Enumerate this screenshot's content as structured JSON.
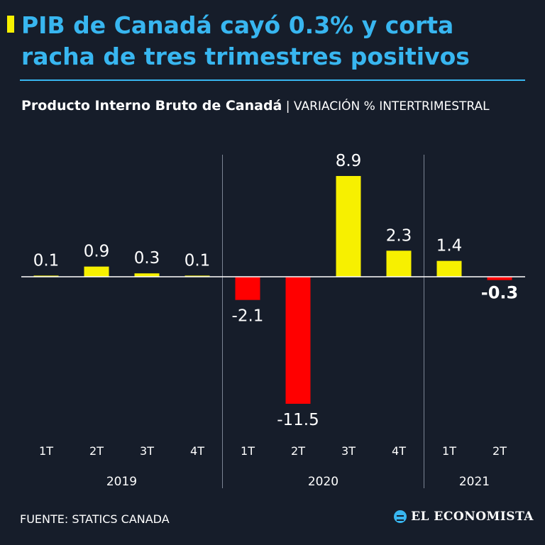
{
  "header": {
    "title": "PIB de Canadá cayó 0.3% y corta racha de tres trimestres positivos",
    "subtitle_strong": "Producto Interno Bruto de Canadá",
    "subtitle_light": "| VARIACIÓN % INTERTRIMESTRAL"
  },
  "footer": {
    "source": "FUENTE: STATICS CANADA",
    "logo": "EL ECONOMISTA"
  },
  "colors": {
    "positive": "#f7f000",
    "negative": "#ff0000",
    "title": "#38b6f0",
    "background": "#161d2a"
  },
  "chart_data": {
    "type": "bar",
    "title": "Producto Interno Bruto de Canadá",
    "ylabel": "Variación % intertrimestral",
    "ylim": [
      -11.5,
      8.9
    ],
    "categories": [
      "1T",
      "2T",
      "3T",
      "4T",
      "1T",
      "2T",
      "3T",
      "4T",
      "1T",
      "2T"
    ],
    "groups": [
      {
        "label": "2019",
        "count": 4
      },
      {
        "label": "2020",
        "count": 4
      },
      {
        "label": "2021",
        "count": 2
      }
    ],
    "values": [
      0.1,
      0.9,
      0.3,
      0.1,
      -2.1,
      -11.5,
      8.9,
      2.3,
      1.4,
      -0.3
    ],
    "value_labels": [
      "0.1",
      "0.9",
      "0.3",
      "0.1",
      "-2.1",
      "-11.5",
      "8.9",
      "2.3",
      "1.4",
      "-0.3"
    ],
    "highlight_index": 9
  }
}
